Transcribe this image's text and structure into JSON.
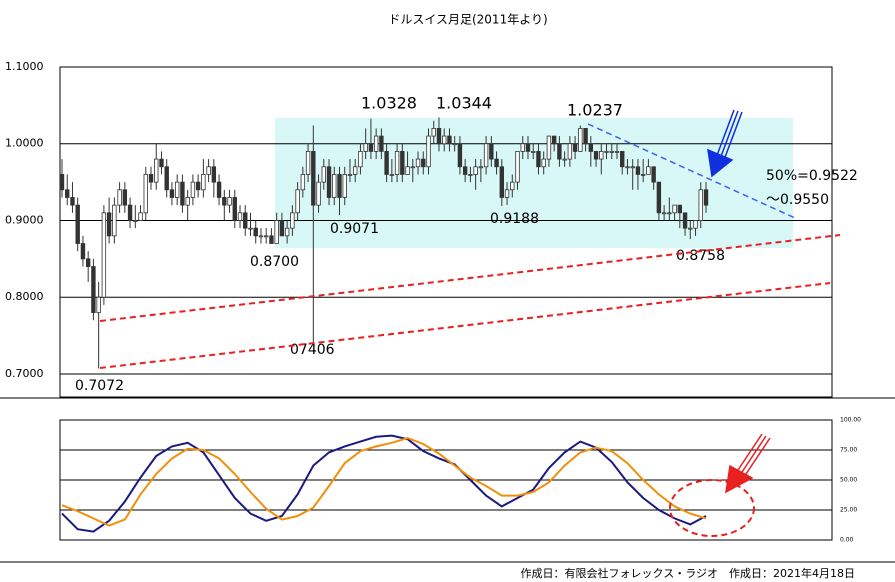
{
  "chart_data": [
    {
      "type": "candlestick",
      "title": "ドルスイス月足(2011年より)",
      "ylim": [
        0.67,
        1.1
      ],
      "yticks": [
        {
          "value": 0.7,
          "label": "0.7000"
        },
        {
          "value": 0.8,
          "label": "0.8000"
        },
        {
          "value": 0.9,
          "label": "0.9000"
        },
        {
          "value": 1.0,
          "label": "1.0000"
        },
        {
          "value": 1.1,
          "label": "1.1000"
        }
      ],
      "grid": true,
      "ohlc": [
        [
          0.96,
          0.98,
          0.93,
          0.94
        ],
        [
          0.94,
          0.96,
          0.92,
          0.93
        ],
        [
          0.93,
          0.95,
          0.91,
          0.92
        ],
        [
          0.92,
          0.93,
          0.86,
          0.87
        ],
        [
          0.87,
          0.88,
          0.84,
          0.85
        ],
        [
          0.85,
          0.86,
          0.82,
          0.84
        ],
        [
          0.84,
          0.85,
          0.77,
          0.78
        ],
        [
          0.78,
          0.82,
          0.7072,
          0.8
        ],
        [
          0.8,
          0.92,
          0.79,
          0.91
        ],
        [
          0.91,
          0.93,
          0.87,
          0.88
        ],
        [
          0.88,
          0.93,
          0.87,
          0.92
        ],
        [
          0.92,
          0.95,
          0.91,
          0.94
        ],
        [
          0.94,
          0.95,
          0.91,
          0.92
        ],
        [
          0.92,
          0.93,
          0.89,
          0.9
        ],
        [
          0.9,
          0.92,
          0.89,
          0.9
        ],
        [
          0.9,
          0.92,
          0.9,
          0.91
        ],
        [
          0.91,
          0.97,
          0.9,
          0.96
        ],
        [
          0.96,
          0.97,
          0.94,
          0.95
        ],
        [
          0.95,
          1.0,
          0.94,
          0.98
        ],
        [
          0.98,
          0.99,
          0.96,
          0.97
        ],
        [
          0.97,
          0.98,
          0.93,
          0.94
        ],
        [
          0.94,
          0.95,
          0.92,
          0.93
        ],
        [
          0.93,
          0.96,
          0.92,
          0.95
        ],
        [
          0.95,
          0.96,
          0.91,
          0.92
        ],
        [
          0.92,
          0.94,
          0.9,
          0.93
        ],
        [
          0.93,
          0.96,
          0.92,
          0.95
        ],
        [
          0.95,
          0.96,
          0.93,
          0.94
        ],
        [
          0.94,
          0.98,
          0.93,
          0.96
        ],
        [
          0.96,
          0.98,
          0.95,
          0.97
        ],
        [
          0.97,
          0.98,
          0.93,
          0.95
        ],
        [
          0.95,
          0.96,
          0.92,
          0.93
        ],
        [
          0.93,
          0.94,
          0.9,
          0.92
        ],
        [
          0.92,
          0.94,
          0.91,
          0.93
        ],
        [
          0.93,
          0.94,
          0.89,
          0.9
        ],
        [
          0.9,
          0.92,
          0.89,
          0.91
        ],
        [
          0.91,
          0.92,
          0.88,
          0.89
        ],
        [
          0.89,
          0.91,
          0.88,
          0.89
        ],
        [
          0.89,
          0.9,
          0.87,
          0.88
        ],
        [
          0.88,
          0.89,
          0.87,
          0.88
        ],
        [
          0.88,
          0.89,
          0.87,
          0.88
        ],
        [
          0.88,
          0.89,
          0.87,
          0.87
        ],
        [
          0.87,
          0.91,
          0.87,
          0.9
        ],
        [
          0.9,
          0.91,
          0.88,
          0.88
        ],
        [
          0.88,
          0.9,
          0.87,
          0.89
        ],
        [
          0.89,
          0.92,
          0.88,
          0.91
        ],
        [
          0.91,
          0.95,
          0.9,
          0.94
        ],
        [
          0.94,
          0.97,
          0.93,
          0.96
        ],
        [
          0.96,
          1.0,
          0.95,
          0.99
        ],
        [
          0.99,
          1.0239,
          0.7406,
          0.92
        ],
        [
          0.92,
          0.96,
          0.91,
          0.95
        ],
        [
          0.95,
          0.98,
          0.94,
          0.97
        ],
        [
          0.97,
          0.98,
          0.92,
          0.93
        ],
        [
          0.93,
          0.97,
          0.92,
          0.96
        ],
        [
          0.96,
          0.97,
          0.9071,
          0.93
        ],
        [
          0.93,
          0.97,
          0.92,
          0.96
        ],
        [
          0.96,
          0.98,
          0.95,
          0.96
        ],
        [
          0.96,
          0.98,
          0.95,
          0.97
        ],
        [
          0.97,
          1.0,
          0.96,
          0.99
        ],
        [
          0.99,
          1.02,
          0.98,
          1.0
        ],
        [
          1.0,
          1.0328,
          0.98,
          0.99
        ],
        [
          0.99,
          1.02,
          0.98,
          1.01
        ],
        [
          1.01,
          1.02,
          0.98,
          0.99
        ],
        [
          0.99,
          1.0,
          0.95,
          0.96
        ],
        [
          0.96,
          0.98,
          0.95,
          0.96
        ],
        [
          0.96,
          1.0,
          0.95,
          0.99
        ],
        [
          0.99,
          1.0,
          0.95,
          0.96
        ],
        [
          0.96,
          0.99,
          0.96,
          0.97
        ],
        [
          0.97,
          0.98,
          0.95,
          0.97
        ],
        [
          0.97,
          0.99,
          0.96,
          0.98
        ],
        [
          0.98,
          0.99,
          0.96,
          0.97
        ],
        [
          0.97,
          1.02,
          0.96,
          1.01
        ],
        [
          1.01,
          1.03,
          1.0,
          1.02
        ],
        [
          1.02,
          1.0344,
          0.99,
          1.0
        ],
        [
          1.0,
          1.02,
          0.99,
          1.01
        ],
        [
          1.01,
          1.02,
          0.99,
          1.0
        ],
        [
          1.0,
          1.01,
          0.99,
          1.0
        ],
        [
          1.0,
          1.01,
          0.96,
          0.97
        ],
        [
          0.97,
          0.98,
          0.95,
          0.96
        ],
        [
          0.96,
          0.97,
          0.95,
          0.96
        ],
        [
          0.96,
          0.98,
          0.94,
          0.97
        ],
        [
          0.97,
          0.98,
          0.95,
          0.97
        ],
        [
          0.97,
          1.01,
          0.96,
          1.0
        ],
        [
          1.0,
          1.01,
          0.97,
          0.98
        ],
        [
          0.98,
          0.99,
          0.96,
          0.97
        ],
        [
          0.97,
          0.98,
          0.9188,
          0.93
        ],
        [
          0.93,
          0.95,
          0.92,
          0.94
        ],
        [
          0.94,
          0.96,
          0.93,
          0.95
        ],
        [
          0.95,
          0.99,
          0.94,
          0.99
        ],
        [
          0.99,
          1.01,
          0.98,
          1.0
        ],
        [
          1.0,
          1.01,
          0.98,
          0.99
        ],
        [
          0.99,
          1.0,
          0.98,
          0.99
        ],
        [
          0.99,
          1.0,
          0.96,
          0.97
        ],
        [
          0.97,
          0.99,
          0.96,
          0.98
        ],
        [
          0.98,
          1.01,
          0.97,
          1.01
        ],
        [
          1.01,
          1.01,
          0.99,
          1.0
        ],
        [
          1.0,
          1.01,
          0.97,
          0.98
        ],
        [
          0.98,
          0.99,
          0.97,
          0.98
        ],
        [
          0.98,
          1.01,
          0.97,
          1.0
        ],
        [
          1.0,
          1.01,
          0.98,
          0.99
        ],
        [
          0.99,
          1.0237,
          0.99,
          1.02
        ],
        [
          1.02,
          1.02,
          0.99,
          1.0
        ],
        [
          1.0,
          1.01,
          0.97,
          0.99
        ],
        [
          0.99,
          0.99,
          0.97,
          0.98
        ],
        [
          0.98,
          1.0,
          0.96,
          0.99
        ],
        [
          0.99,
          1.0,
          0.98,
          0.99
        ],
        [
          0.99,
          1.0,
          0.98,
          0.99
        ],
        [
          0.99,
          1.0,
          0.98,
          0.99
        ],
        [
          0.99,
          0.99,
          0.96,
          0.97
        ],
        [
          0.97,
          0.98,
          0.96,
          0.97
        ],
        [
          0.97,
          0.98,
          0.94,
          0.97
        ],
        [
          0.97,
          0.98,
          0.94,
          0.96
        ],
        [
          0.96,
          0.98,
          0.95,
          0.96
        ],
        [
          0.96,
          0.98,
          0.96,
          0.97
        ],
        [
          0.97,
          0.97,
          0.94,
          0.95
        ],
        [
          0.95,
          0.95,
          0.9,
          0.91
        ],
        [
          0.91,
          0.92,
          0.9,
          0.91
        ],
        [
          0.91,
          0.93,
          0.9,
          0.91
        ],
        [
          0.91,
          0.92,
          0.9,
          0.92
        ],
        [
          0.92,
          0.92,
          0.89,
          0.91
        ],
        [
          0.91,
          0.91,
          0.88,
          0.89
        ],
        [
          0.89,
          0.9,
          0.8758,
          0.89
        ],
        [
          0.89,
          0.9,
          0.88,
          0.9
        ],
        [
          0.9,
          0.95,
          0.89,
          0.94
        ],
        [
          0.94,
          0.95,
          0.91,
          0.92
        ]
      ],
      "annotations": [
        "1.0328",
        "1.0344",
        "1.0237",
        "0.9071",
        "0.9188",
        "0.8700",
        "07406",
        "0.7072",
        "0.8758",
        "50%=0.9522",
        "～0.9550"
      ]
    },
    {
      "type": "line",
      "ylim": [
        0,
        100
      ],
      "yticks": [
        {
          "value": 0,
          "label": "0.00"
        },
        {
          "value": 25,
          "label": "25.00"
        },
        {
          "value": 50,
          "label": "50.00"
        },
        {
          "value": 75,
          "label": "75.00"
        },
        {
          "value": 100,
          "label": "100.00"
        }
      ],
      "grid": true,
      "series": [
        {
          "color": "#1a1a80",
          "values": [
            22,
            9,
            7,
            16,
            32,
            52,
            70,
            78,
            81,
            73,
            54,
            35,
            22,
            16,
            20,
            38,
            62,
            73,
            78,
            82,
            86,
            87,
            84,
            74,
            68,
            63,
            50,
            37,
            28,
            35,
            42,
            60,
            73,
            82,
            77,
            65,
            48,
            35,
            25,
            18,
            13,
            20
          ]
        },
        {
          "color": "#f0900a",
          "values": [
            29,
            24,
            18,
            12,
            17,
            38,
            55,
            68,
            76,
            75,
            68,
            55,
            40,
            26,
            17,
            20,
            27,
            45,
            64,
            74,
            78,
            81,
            85,
            80,
            72,
            62,
            52,
            45,
            37,
            37,
            40,
            48,
            62,
            73,
            77,
            74,
            64,
            50,
            38,
            28,
            22,
            18
          ]
        }
      ]
    }
  ],
  "footer": "作成日：有限会社フォレックス・ラジオ　作成日：2021年4月18日"
}
